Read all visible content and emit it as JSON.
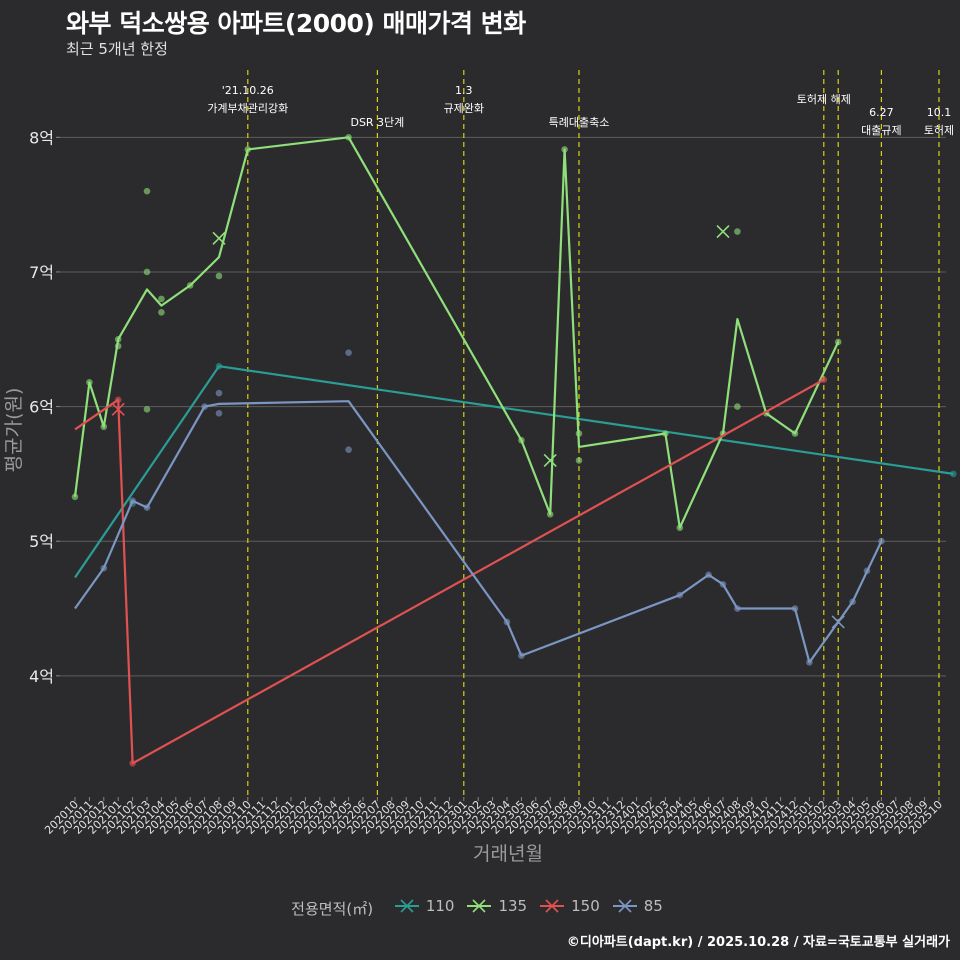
{
  "chart_data": {
    "type": "line",
    "title": "와부 덕소쌍용 아파트(2000) 매매가격 변화",
    "subtitle": "최근 5개년 한정",
    "xlabel": "거래년월",
    "ylabel": "평균가(원)",
    "legend_title": "전용면적(㎡)",
    "caption": "©디아파트(dapt.kr) / 2025.10.28 / 자료=국토교통부 실거래가",
    "ylim": [
      3.1,
      8.5
    ],
    "yticks": [
      4,
      5,
      6,
      7,
      8
    ],
    "ytick_labels": [
      "4억",
      "5억",
      "6억",
      "7억",
      "8억"
    ],
    "categories": [
      "202010",
      "202011",
      "202012",
      "202101",
      "202102",
      "202103",
      "202104",
      "202105",
      "202106",
      "202107",
      "202108",
      "202109",
      "202110",
      "202111",
      "202112",
      "202201",
      "202202",
      "202203",
      "202204",
      "202205",
      "202206",
      "202207",
      "202208",
      "202209",
      "202210",
      "202211",
      "202212",
      "202301",
      "202302",
      "202303",
      "202304",
      "202305",
      "202306",
      "202307",
      "202308",
      "202309",
      "202310",
      "202311",
      "202312",
      "202401",
      "202402",
      "202403",
      "202404",
      "202405",
      "202406",
      "202407",
      "202408",
      "202409",
      "202410",
      "202411",
      "202412",
      "202501",
      "202502",
      "202503",
      "202504",
      "202505",
      "202506",
      "202507",
      "202508",
      "202509",
      "202510"
    ],
    "series": [
      {
        "name": "110",
        "color": "#2a9d95",
        "line": [
          [
            0,
            4.73
          ],
          [
            10,
            6.3
          ],
          [
            61,
            5.5
          ]
        ],
        "points": [
          [
            4,
            5.28
          ],
          [
            10,
            6.3
          ],
          [
            61,
            5.5
          ]
        ],
        "crosses": []
      },
      {
        "name": "135",
        "color": "#8fe07a",
        "line": [
          [
            0,
            5.33
          ],
          [
            1,
            6.18
          ],
          [
            2,
            5.85
          ],
          [
            3,
            6.5
          ],
          [
            5,
            6.87
          ],
          [
            6,
            6.75
          ],
          [
            8,
            6.9
          ],
          [
            10,
            7.11
          ],
          [
            12,
            7.91
          ],
          [
            19,
            8.0
          ],
          [
            31,
            5.75
          ],
          [
            33,
            5.2
          ],
          [
            34,
            7.91
          ],
          [
            35,
            5.7
          ],
          [
            41,
            5.8
          ],
          [
            42,
            5.1
          ],
          [
            45,
            5.8
          ],
          [
            46,
            6.65
          ],
          [
            48,
            5.95
          ],
          [
            50,
            5.8
          ],
          [
            53,
            6.48
          ]
        ],
        "points": [
          [
            0,
            5.33
          ],
          [
            1,
            6.18
          ],
          [
            2,
            5.85
          ],
          [
            3,
            6.5
          ],
          [
            3,
            6.45
          ],
          [
            5,
            7.6
          ],
          [
            5,
            7.0
          ],
          [
            5,
            5.98
          ],
          [
            6,
            6.8
          ],
          [
            6,
            6.7
          ],
          [
            8,
            6.9
          ],
          [
            10,
            6.97
          ],
          [
            12,
            7.91
          ],
          [
            19,
            8.0
          ],
          [
            31,
            5.75
          ],
          [
            33,
            5.2
          ],
          [
            34,
            7.91
          ],
          [
            35,
            5.8
          ],
          [
            35,
            5.6
          ],
          [
            41,
            5.8
          ],
          [
            42,
            5.1
          ],
          [
            45,
            5.8
          ],
          [
            46,
            6.0
          ],
          [
            46,
            7.3
          ],
          [
            48,
            5.95
          ],
          [
            50,
            5.8
          ],
          [
            53,
            6.48
          ]
        ],
        "crosses": [
          [
            10,
            7.25
          ],
          [
            33,
            5.6
          ],
          [
            45,
            7.3
          ]
        ]
      },
      {
        "name": "150",
        "color": "#e05252",
        "line": [
          [
            0,
            5.83
          ],
          [
            3,
            6.05
          ],
          [
            4,
            3.35
          ],
          [
            52,
            6.2
          ]
        ],
        "points": [
          [
            3,
            6.05
          ],
          [
            4,
            3.35
          ],
          [
            52,
            6.2
          ]
        ],
        "crosses": [
          [
            3,
            5.98
          ]
        ]
      },
      {
        "name": "85",
        "color": "#7b96c2",
        "line": [
          [
            0,
            4.5
          ],
          [
            2,
            4.8
          ],
          [
            4,
            5.3
          ],
          [
            5,
            5.25
          ],
          [
            9,
            6.0
          ],
          [
            10,
            6.02
          ],
          [
            19,
            6.04
          ],
          [
            30,
            4.4
          ],
          [
            31,
            4.15
          ],
          [
            42,
            4.6
          ],
          [
            44,
            4.75
          ],
          [
            45,
            4.68
          ],
          [
            46,
            4.5
          ],
          [
            50,
            4.5
          ],
          [
            51,
            4.1
          ],
          [
            53,
            4.4
          ],
          [
            54,
            4.55
          ],
          [
            56,
            5.0
          ]
        ],
        "points": [
          [
            2,
            4.8
          ],
          [
            4,
            5.3
          ],
          [
            5,
            5.25
          ],
          [
            9,
            6.0
          ],
          [
            10,
            6.1
          ],
          [
            10,
            5.95
          ],
          [
            19,
            6.4
          ],
          [
            19,
            5.68
          ],
          [
            30,
            4.4
          ],
          [
            31,
            4.15
          ],
          [
            42,
            4.6
          ],
          [
            44,
            4.75
          ],
          [
            45,
            4.68
          ],
          [
            46,
            4.5
          ],
          [
            50,
            4.5
          ],
          [
            51,
            4.1
          ],
          [
            54,
            4.55
          ],
          [
            55,
            4.78
          ],
          [
            56,
            5.0
          ]
        ],
        "crosses": [
          [
            53,
            4.4
          ]
        ]
      }
    ],
    "events": [
      {
        "x": 12,
        "lines": [
          "'21.10.26",
          "가계부채관리강화"
        ]
      },
      {
        "x": 21,
        "lines": [
          "DSR 3단계"
        ]
      },
      {
        "x": 27,
        "lines": [
          "1.3",
          "규제완화"
        ]
      },
      {
        "x": 35,
        "lines": [
          "특례대출축소"
        ]
      },
      {
        "x": 52,
        "lines": [
          "토허제 해제"
        ]
      },
      {
        "x": 53,
        "lines": []
      },
      {
        "x": 56,
        "lines": [
          "6.27",
          "대출규제"
        ]
      },
      {
        "x": 60,
        "lines": [
          "10.1",
          "토허제"
        ]
      }
    ]
  }
}
